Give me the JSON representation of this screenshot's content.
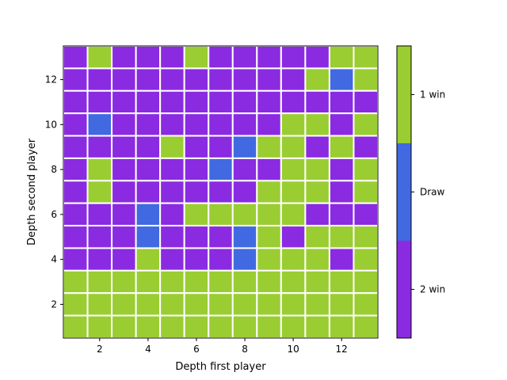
{
  "chart_data": {
    "type": "heatmap",
    "xlabel": "Depth first player",
    "ylabel": "Depth second player",
    "x": [
      1,
      2,
      3,
      4,
      5,
      6,
      7,
      8,
      9,
      10,
      11,
      12,
      13
    ],
    "y": [
      1,
      2,
      3,
      4,
      5,
      6,
      7,
      8,
      9,
      10,
      11,
      12,
      13
    ],
    "xlim": [
      0.5,
      13.5
    ],
    "ylim": [
      0.5,
      13.5
    ],
    "xticks": [
      "2",
      "4",
      "6",
      "8",
      "10",
      "12"
    ],
    "yticks": [
      "2",
      "4",
      "6",
      "8",
      "10",
      "12"
    ],
    "categories": [
      "2 win",
      "Draw",
      "1 win"
    ],
    "category_values": [
      0,
      1,
      2
    ],
    "colors": {
      "2 win": "#8A2BE2",
      "Draw": "#4169E1",
      "1 win": "#9ACD32"
    },
    "colorbar_labels": [
      "2 win",
      "Draw",
      "1 win"
    ],
    "grid_line_color": "#ffffff",
    "values_by_row_from_top": [
      [
        0,
        2,
        0,
        0,
        0,
        2,
        0,
        0,
        0,
        0,
        0,
        2,
        2
      ],
      [
        0,
        0,
        0,
        0,
        0,
        0,
        0,
        0,
        0,
        0,
        2,
        1,
        2
      ],
      [
        0,
        0,
        0,
        0,
        0,
        0,
        0,
        0,
        0,
        0,
        0,
        0,
        0
      ],
      [
        0,
        1,
        0,
        0,
        0,
        0,
        0,
        0,
        0,
        2,
        2,
        0,
        2
      ],
      [
        0,
        0,
        0,
        0,
        2,
        0,
        0,
        1,
        2,
        2,
        0,
        2,
        0
      ],
      [
        0,
        2,
        0,
        0,
        0,
        0,
        1,
        0,
        0,
        2,
        2,
        0,
        2
      ],
      [
        0,
        2,
        0,
        0,
        0,
        0,
        0,
        0,
        2,
        2,
        2,
        0,
        2
      ],
      [
        0,
        0,
        0,
        1,
        0,
        2,
        2,
        2,
        2,
        2,
        0,
        0,
        0
      ],
      [
        0,
        0,
        0,
        1,
        0,
        0,
        0,
        1,
        2,
        0,
        2,
        2,
        2
      ],
      [
        0,
        0,
        0,
        2,
        0,
        0,
        0,
        1,
        2,
        2,
        2,
        0,
        2
      ],
      [
        2,
        2,
        2,
        2,
        2,
        2,
        2,
        2,
        2,
        2,
        2,
        2,
        2
      ],
      [
        2,
        2,
        2,
        2,
        2,
        2,
        2,
        2,
        2,
        2,
        2,
        2,
        2
      ],
      [
        2,
        2,
        2,
        2,
        2,
        2,
        2,
        2,
        2,
        2,
        2,
        2,
        2
      ]
    ]
  }
}
